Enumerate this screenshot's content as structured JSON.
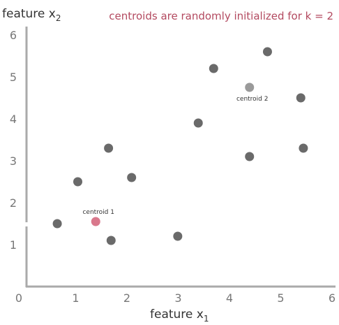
{
  "chart_data": {
    "type": "scatter",
    "title": "centroids are randomly initialized for k = 2",
    "xlabel": {
      "base": "feature x",
      "sub": "1"
    },
    "ylabel": {
      "base": "feature x",
      "sub": "2"
    },
    "xlim": [
      0,
      6.3
    ],
    "ylim": [
      0,
      6.5
    ],
    "x_ticks": [
      "0",
      "1",
      "2",
      "3",
      "4",
      "5",
      "6"
    ],
    "y_ticks": [
      "1",
      "2",
      "3",
      "4",
      "5",
      "6"
    ],
    "grid": false,
    "series": [
      {
        "role": "data-points",
        "color": "#6a6a6a",
        "x": [
          0.6,
          1.0,
          1.6,
          2.05,
          1.65,
          2.95,
          3.35,
          3.65,
          4.7,
          4.35,
          5.35,
          5.4
        ],
        "y": [
          1.5,
          2.5,
          3.3,
          2.6,
          1.1,
          1.2,
          3.9,
          5.2,
          5.6,
          3.1,
          4.5,
          3.3
        ]
      },
      {
        "role": "centroid",
        "label": "centroid 1",
        "color": "#d9788c",
        "x": [
          1.35
        ],
        "y": [
          1.55
        ]
      },
      {
        "role": "centroid",
        "label": "centroid 2",
        "color": "#9a9a9a",
        "x": [
          4.35
        ],
        "y": [
          4.75
        ]
      }
    ],
    "colors": {
      "axis": "#aaaaaa",
      "title": "#b34a60",
      "text": "#333333",
      "ticks": "#777777"
    }
  }
}
